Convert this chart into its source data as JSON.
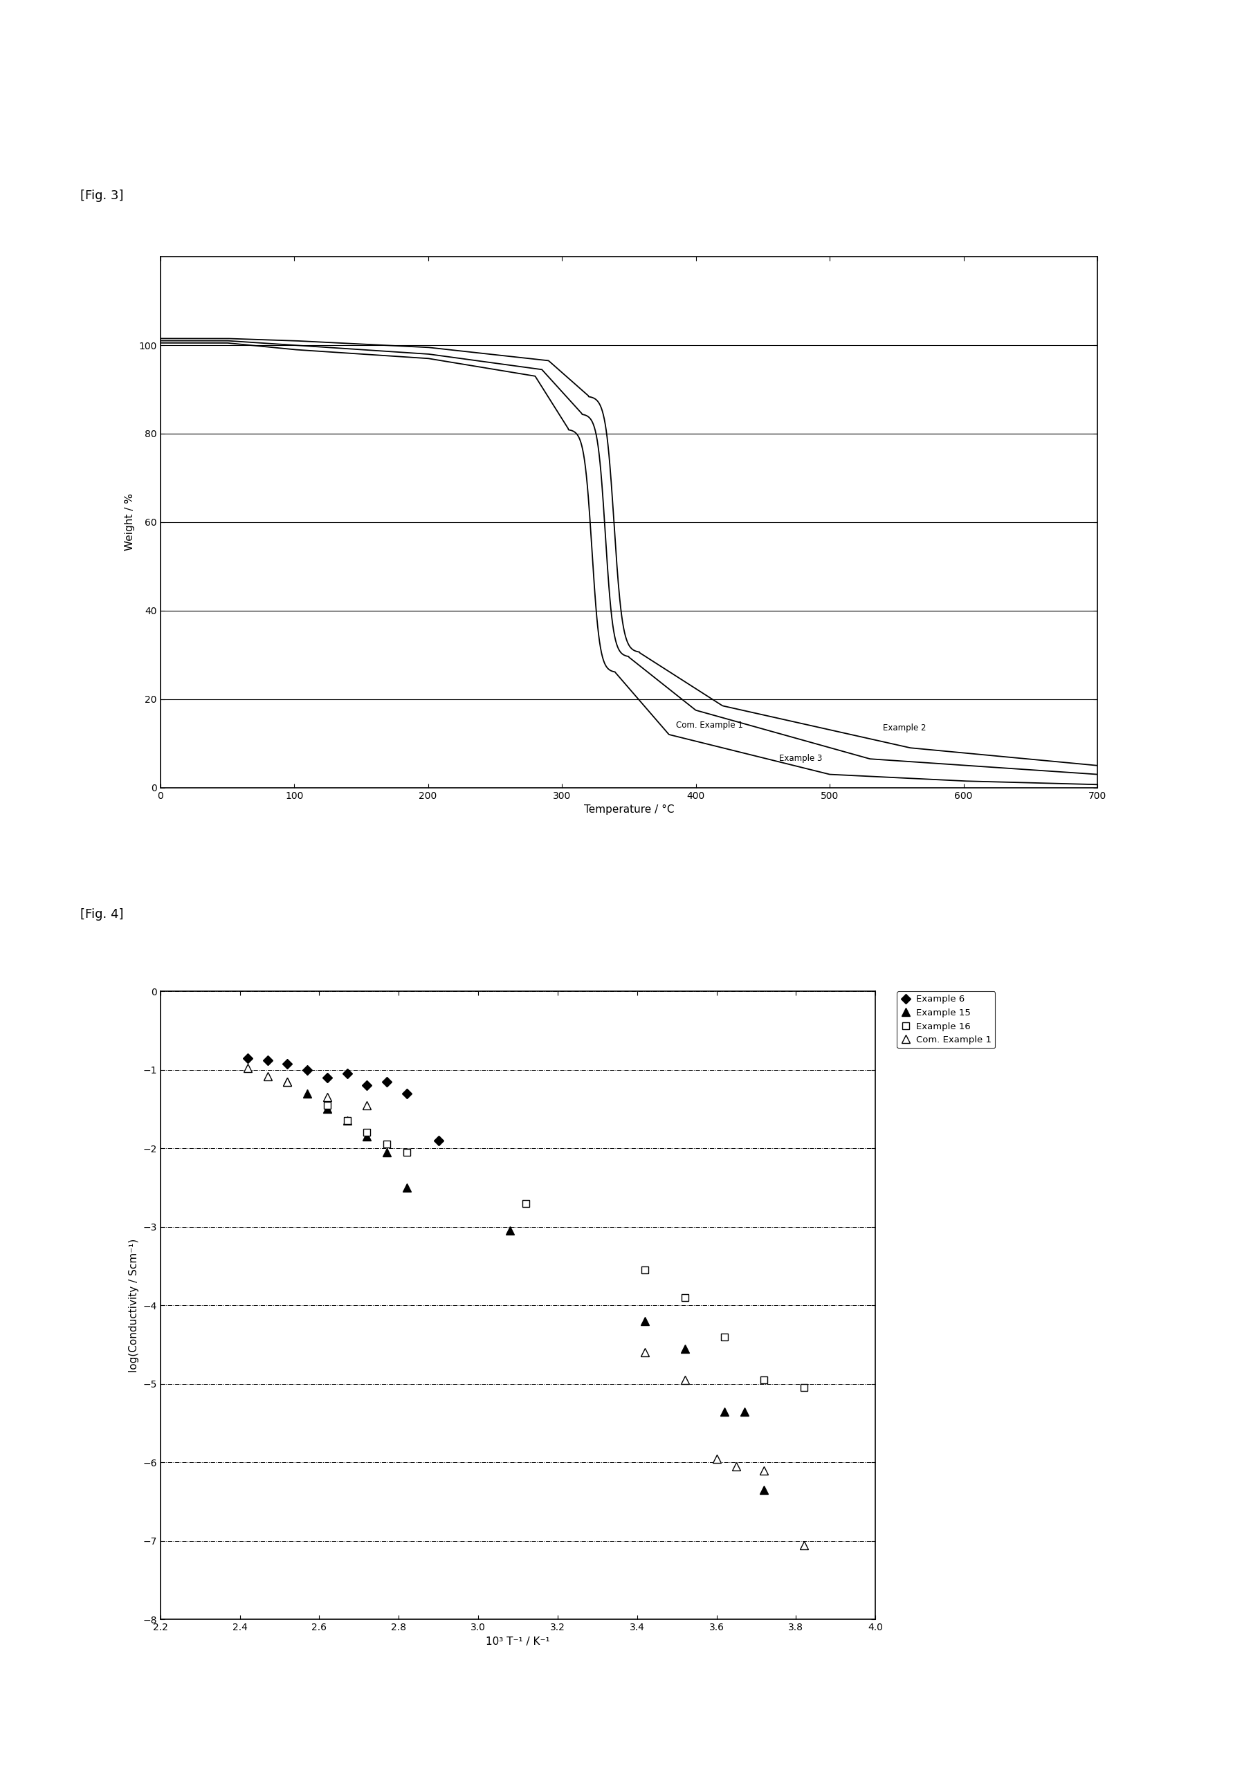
{
  "fig3_title": "[Fig. 3]",
  "fig4_title": "[Fig. 4]",
  "fig3_xlabel": "Temperature / °C",
  "fig3_ylabel": "Weight / %",
  "fig3_xlim": [
    0,
    700
  ],
  "fig3_ylim": [
    0,
    120
  ],
  "fig3_xticks": [
    0,
    100,
    200,
    300,
    400,
    500,
    600,
    700
  ],
  "fig3_yticks": [
    0,
    20,
    40,
    60,
    80,
    100
  ],
  "fig4_xlabel": "10³ T⁻¹ / K⁻¹",
  "fig4_ylabel": "log(Conductivity / Scm⁻¹)",
  "fig4_xlim": [
    2.2,
    4.0
  ],
  "fig4_ylim": [
    -8.0,
    0.0
  ],
  "fig4_xticks": [
    2.2,
    2.4,
    2.6,
    2.8,
    3.0,
    3.2,
    3.4,
    3.6,
    3.8,
    4.0
  ],
  "fig4_yticks": [
    -8,
    -7,
    -6,
    -5,
    -4,
    -3,
    -2,
    -1,
    0
  ],
  "background_color": "#ffffff",
  "ex6_x": [
    2.42,
    2.47,
    2.52,
    2.57,
    2.62,
    2.67,
    2.72,
    2.77,
    2.82,
    2.9
  ],
  "ex6_y": [
    -0.85,
    -0.88,
    -0.92,
    -1.0,
    -1.1,
    -1.05,
    -1.2,
    -1.15,
    -1.3,
    -1.9
  ],
  "ex15_x": [
    2.52,
    2.57,
    2.62,
    2.67,
    2.72,
    2.77,
    2.82,
    3.08,
    3.42,
    3.52,
    3.62,
    3.67,
    3.72
  ],
  "ex15_y": [
    -1.15,
    -1.3,
    -1.5,
    -1.65,
    -1.85,
    -2.05,
    -2.5,
    -3.05,
    -4.2,
    -4.55,
    -5.35,
    -5.35,
    -6.35
  ],
  "ex16_x": [
    2.62,
    2.67,
    2.72,
    2.77,
    2.82,
    3.12,
    3.42,
    3.52,
    3.62,
    3.72,
    3.82
  ],
  "ex16_y": [
    -1.45,
    -1.65,
    -1.8,
    -1.95,
    -2.05,
    -2.7,
    -3.55,
    -3.9,
    -4.4,
    -4.95,
    -5.05
  ],
  "com1_x": [
    2.42,
    2.47,
    2.52,
    2.62,
    2.72,
    3.42,
    3.52,
    3.6,
    3.65,
    3.72,
    3.82
  ],
  "com1_y": [
    -0.98,
    -1.08,
    -1.15,
    -1.35,
    -1.45,
    -4.6,
    -4.95,
    -5.95,
    -6.05,
    -6.1,
    -7.05
  ]
}
